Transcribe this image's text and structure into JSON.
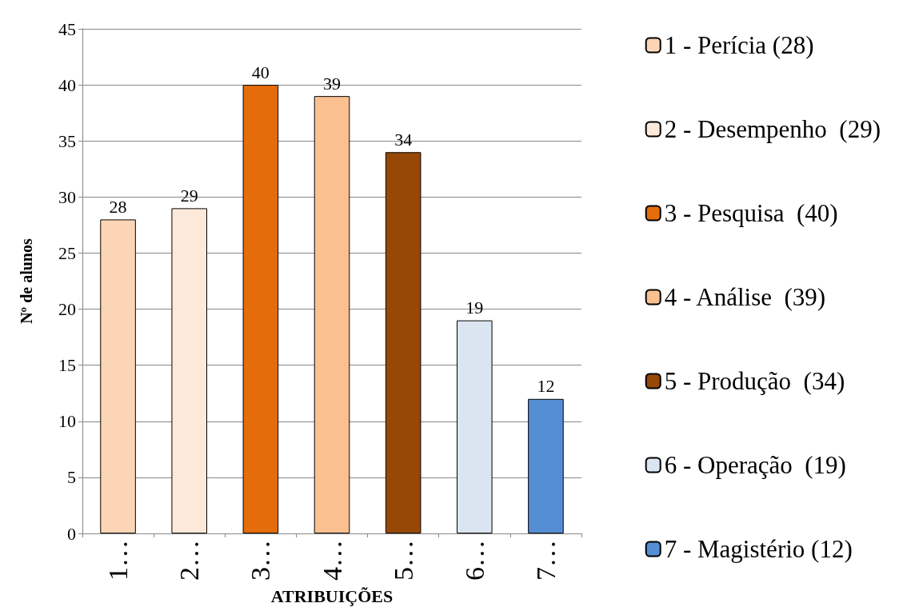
{
  "chart_data": {
    "type": "bar",
    "xlabel": "ATRIBUIÇÕES",
    "ylabel": "Nº de alunos",
    "categories": [
      "1…",
      "2…",
      "3…",
      "4…",
      "5…",
      "6…",
      "7…"
    ],
    "series": [
      {
        "name": "1 - Perícia (28)",
        "color": "#fbd5b5",
        "values": [
          28,
          null,
          null,
          null,
          null,
          null,
          null
        ]
      },
      {
        "name": "2 - Desempenho  (29)",
        "color": "#fde9d9",
        "values": [
          null,
          29,
          null,
          null,
          null,
          null,
          null
        ]
      },
      {
        "name": "3 - Pesquisa  (40)",
        "color": "#e46c0a",
        "values": [
          null,
          null,
          40,
          null,
          null,
          null,
          null
        ]
      },
      {
        "name": "4 - Análise  (39)",
        "color": "#fac090",
        "values": [
          null,
          null,
          null,
          39,
          null,
          null,
          null
        ]
      },
      {
        "name": "5 - Produção  (34)",
        "color": "#974806",
        "values": [
          null,
          null,
          null,
          null,
          34,
          null,
          null
        ]
      },
      {
        "name": "6 - Operação  (19)",
        "color": "#dbe5f1",
        "values": [
          null,
          null,
          null,
          null,
          null,
          19,
          null
        ]
      },
      {
        "name": "7 - Magistério (12)",
        "color": "#558ed5",
        "values": [
          null,
          null,
          null,
          null,
          null,
          null,
          12
        ]
      }
    ],
    "ylim": [
      0,
      45
    ],
    "yticks": [
      0,
      5,
      10,
      15,
      20,
      25,
      30,
      35,
      40,
      45
    ],
    "grid": "y",
    "legend": "right",
    "data_labels": true
  }
}
